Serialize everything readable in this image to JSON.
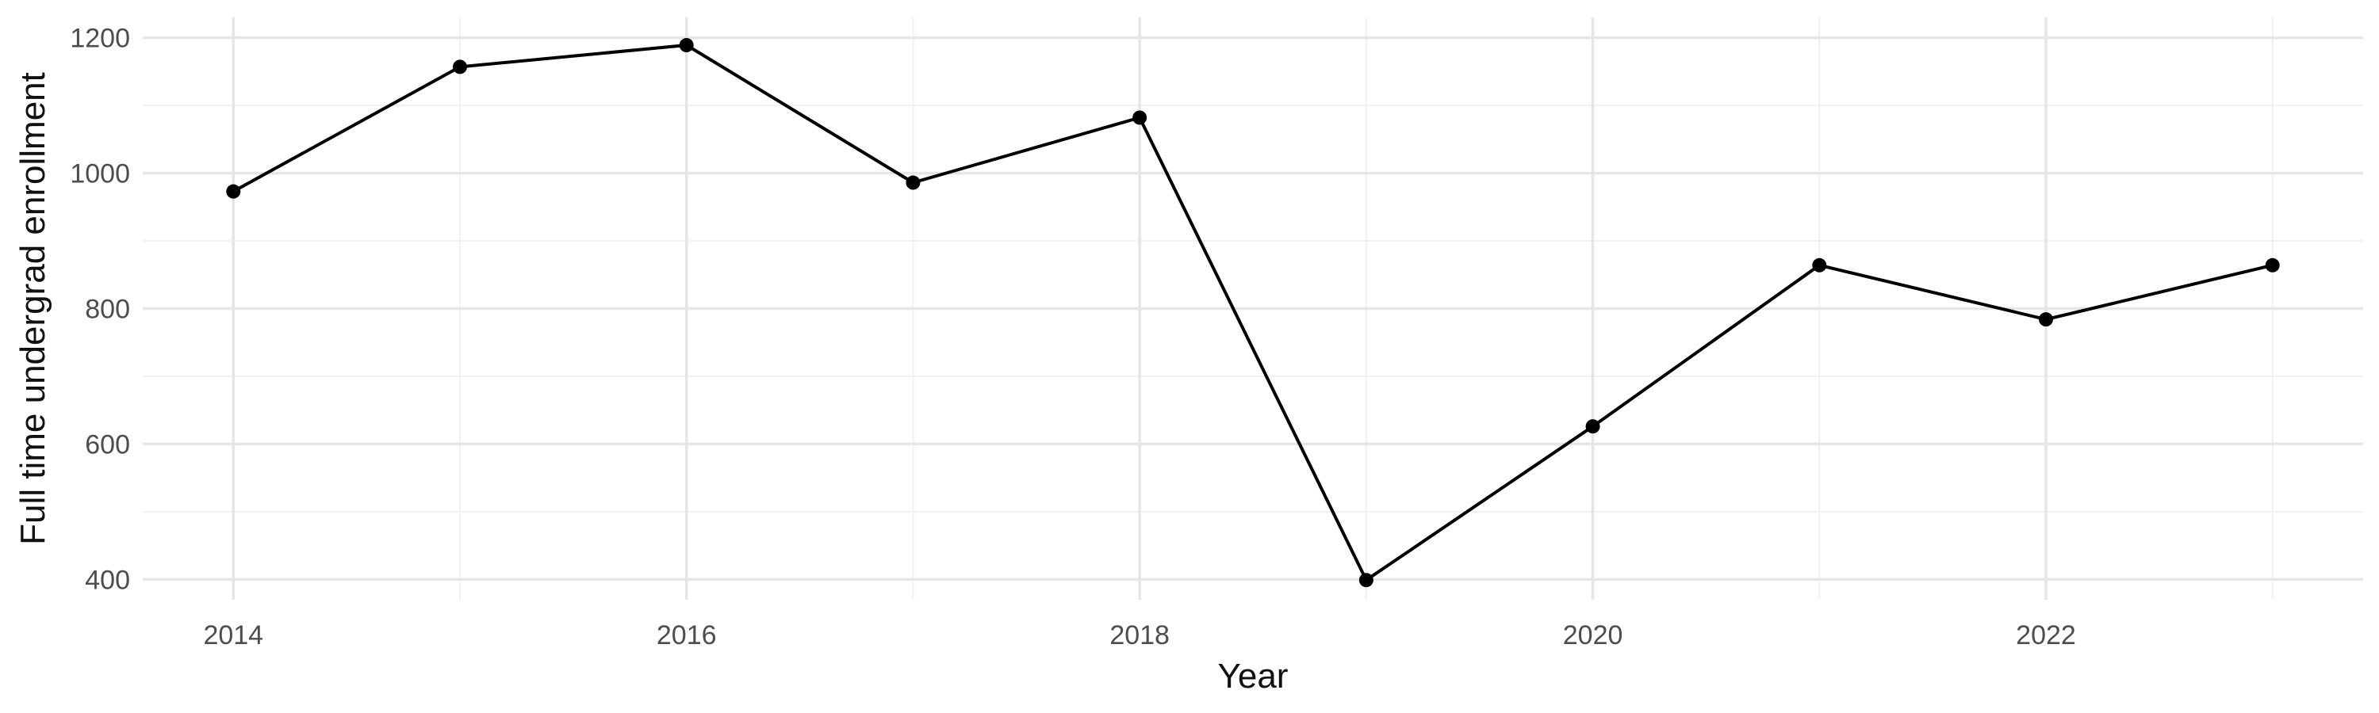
{
  "chart_data": {
    "type": "line",
    "title": "",
    "xlabel": "Year",
    "ylabel": "Full time undergrad enrollment",
    "xlim": [
      2013.6,
      2023.4
    ],
    "ylim": [
      370,
      1230
    ],
    "x_ticks": [
      2014,
      2016,
      2018,
      2020,
      2022
    ],
    "y_ticks": [
      400,
      600,
      800,
      1000,
      1200
    ],
    "x_minor_ticks": [
      2015,
      2017,
      2019,
      2021,
      2023
    ],
    "y_minor_ticks": [
      500,
      700,
      900,
      1100
    ],
    "grid": true,
    "legend": "none",
    "colors": {
      "line": "#000000",
      "point": "#000000",
      "grid_major": "#e6e6e6",
      "grid_minor": "#f1f1f1"
    },
    "series": [
      {
        "x": [
          2014,
          2015,
          2016,
          2017,
          2018,
          2019,
          2020,
          2021,
          2022,
          2023
        ],
        "values": [
          973,
          1157,
          1189,
          986,
          1082,
          399,
          626,
          864,
          784,
          864
        ]
      }
    ]
  }
}
